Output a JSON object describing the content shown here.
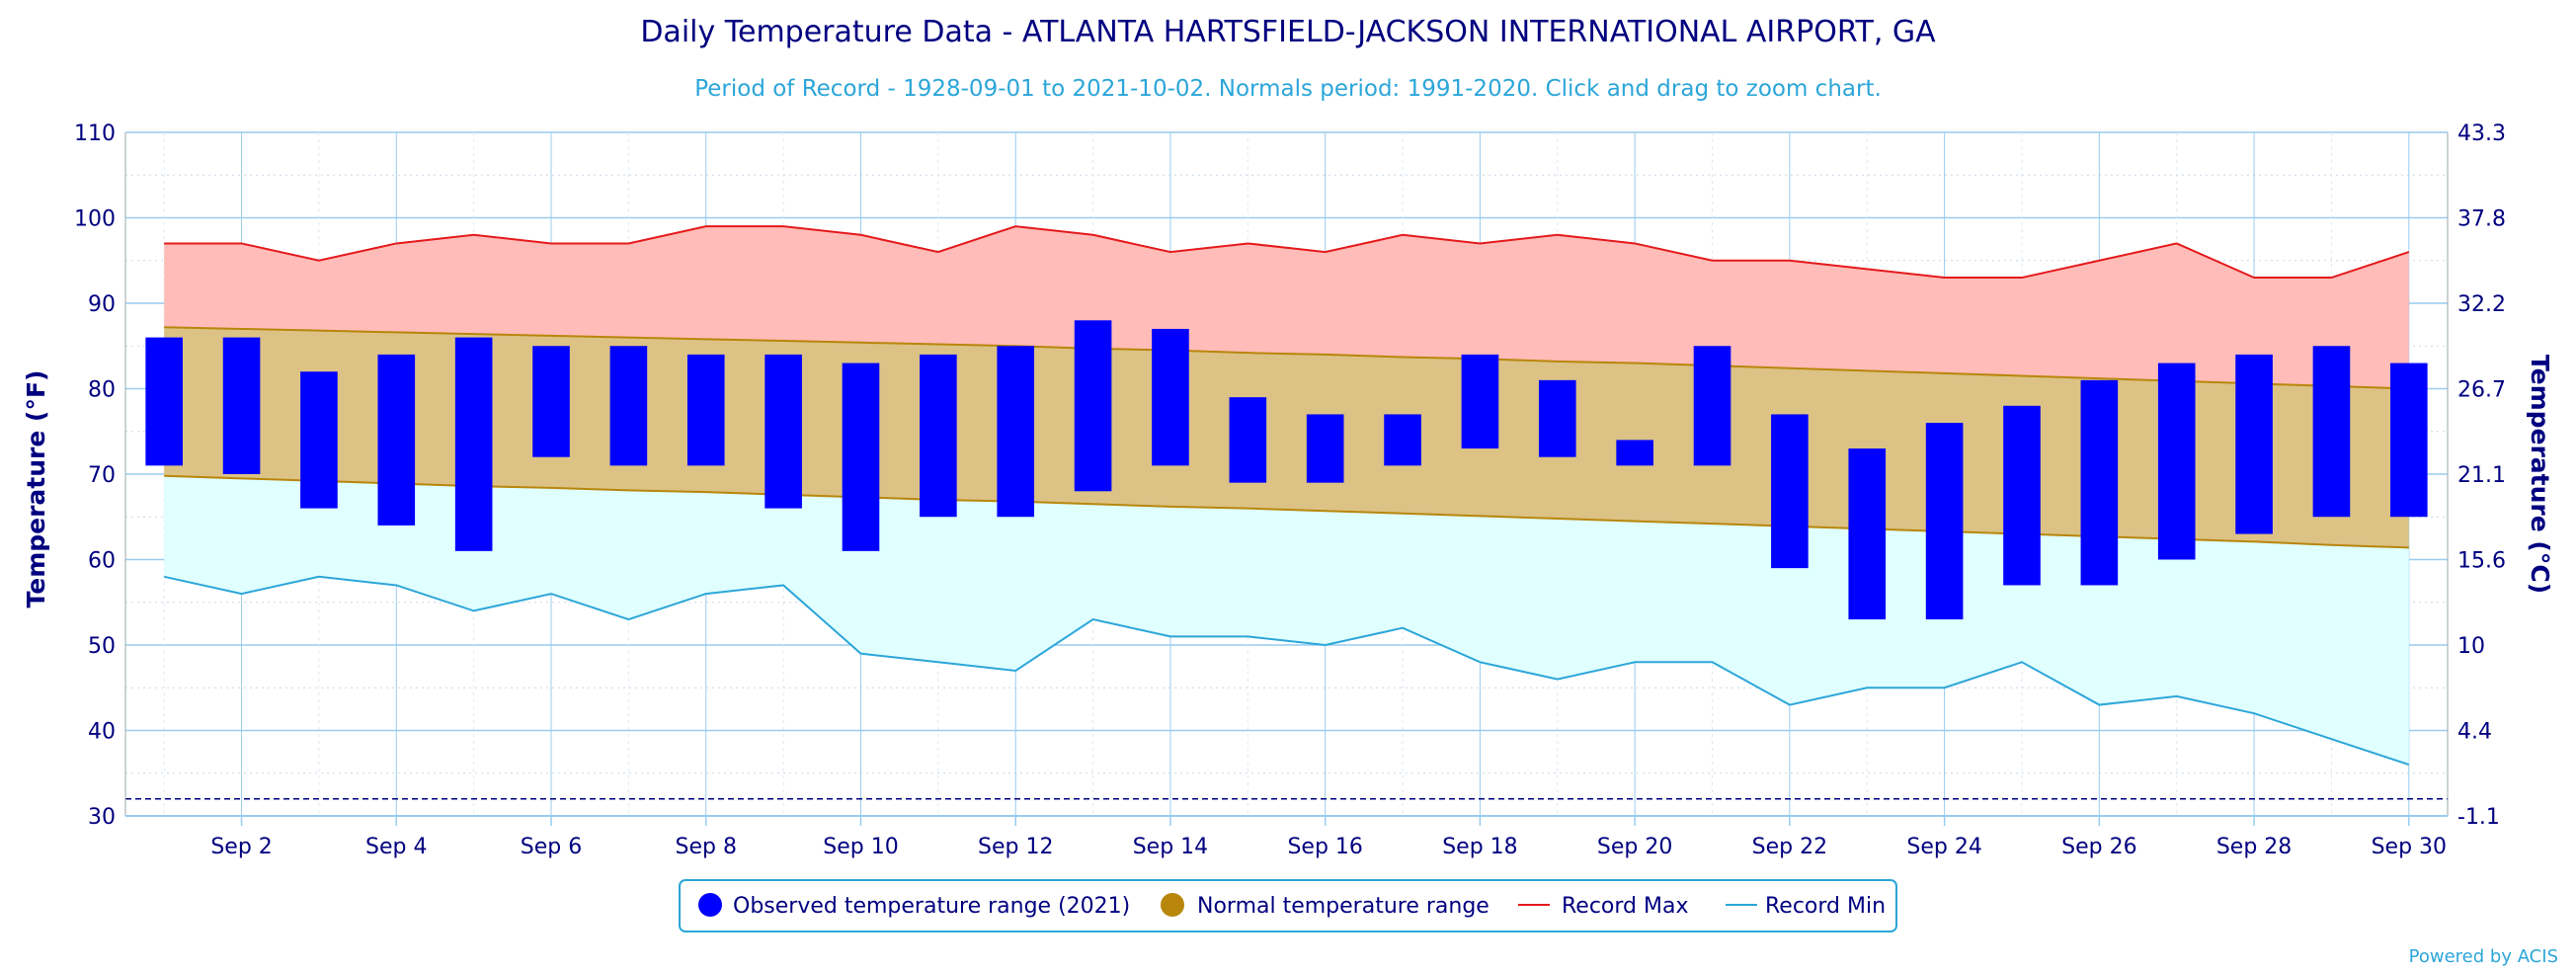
{
  "title": "Daily Temperature Data - ATLANTA HARTSFIELD-JACKSON INTERNATIONAL AIRPORT, GA",
  "subtitle": "Period of Record - 1928-09-01 to 2021-10-02. Normals period: 1991-2020. Click and drag to zoom chart.",
  "credit": "Powered by ACIS",
  "colors": {
    "observed": "#0000ff",
    "normal": "#b8860b",
    "normal_fill": "#dcc285",
    "record_max": "#e41a1c",
    "record_max_fill": "#ffbcb8",
    "record_min": "#2ca6d9",
    "record_min_fill": "#e0ffff",
    "axis": "#000080",
    "grid": "#99ccee"
  },
  "chart_data": {
    "type": "bar",
    "xlabel": "",
    "ylabel": "Temperature (°F)",
    "y2label": "Temperature (°C)",
    "ylim": [
      30,
      110
    ],
    "yticks": [
      "30",
      "40",
      "50",
      "60",
      "70",
      "80",
      "90",
      "100",
      "110"
    ],
    "y2ticks": [
      "-1.1",
      "4.4",
      "10",
      "15.6",
      "21.1",
      "26.7",
      "32.2",
      "37.8",
      "43.3"
    ],
    "freezing_line": 32,
    "x_labels": [
      "Sep 2",
      "Sep 4",
      "Sep 6",
      "Sep 8",
      "Sep 10",
      "Sep 12",
      "Sep 14",
      "Sep 16",
      "Sep 18",
      "Sep 20",
      "Sep 22",
      "Sep 24",
      "Sep 26",
      "Sep 28",
      "Sep 30"
    ],
    "x_label_days": [
      2,
      4,
      6,
      8,
      10,
      12,
      14,
      16,
      18,
      20,
      22,
      24,
      26,
      28,
      30
    ],
    "days": [
      1,
      2,
      3,
      4,
      5,
      6,
      7,
      8,
      9,
      10,
      11,
      12,
      13,
      14,
      15,
      16,
      17,
      18,
      19,
      20,
      21,
      22,
      23,
      24,
      25,
      26,
      27,
      28,
      29,
      30
    ],
    "series": [
      {
        "name": "Observed temperature range (2021)",
        "high": [
          86,
          86,
          82,
          84,
          86,
          85,
          85,
          84,
          84,
          83,
          84,
          85,
          88,
          87,
          79,
          77,
          77,
          84,
          81,
          74,
          85,
          77,
          73,
          76,
          78,
          81,
          83,
          84,
          85,
          83
        ],
        "low": [
          71,
          70,
          66,
          64,
          61,
          72,
          71,
          71,
          66,
          61,
          65,
          65,
          68,
          71,
          69,
          69,
          71,
          73,
          72,
          71,
          71,
          59,
          53,
          53,
          57,
          57,
          60,
          63,
          65,
          65
        ]
      },
      {
        "name": "Normal temperature range",
        "high": [
          87.2,
          87.0,
          86.8,
          86.6,
          86.4,
          86.2,
          86.0,
          85.8,
          85.6,
          85.4,
          85.2,
          85.0,
          84.7,
          84.5,
          84.2,
          84.0,
          83.7,
          83.5,
          83.2,
          83.0,
          82.7,
          82.4,
          82.1,
          81.8,
          81.5,
          81.2,
          80.9,
          80.6,
          80.3,
          80.0
        ],
        "low": [
          69.8,
          69.5,
          69.2,
          68.9,
          68.6,
          68.4,
          68.1,
          67.9,
          67.6,
          67.3,
          67.0,
          66.8,
          66.5,
          66.2,
          66.0,
          65.7,
          65.4,
          65.1,
          64.8,
          64.5,
          64.2,
          63.9,
          63.6,
          63.3,
          63.0,
          62.7,
          62.4,
          62.1,
          61.7,
          61.4
        ]
      },
      {
        "name": "Record Max",
        "values": [
          97,
          97,
          95,
          97,
          98,
          97,
          97,
          99,
          99,
          98,
          96,
          99,
          98,
          96,
          97,
          96,
          98,
          97,
          98,
          97,
          95,
          95,
          94,
          93,
          93,
          95,
          97,
          93,
          93,
          96
        ]
      },
      {
        "name": "Record Min",
        "values": [
          58,
          56,
          58,
          57,
          54,
          56,
          53,
          56,
          57,
          49,
          48,
          47,
          53,
          51,
          51,
          50,
          52,
          48,
          46,
          48,
          48,
          43,
          45,
          45,
          48,
          43,
          44,
          42,
          39,
          36
        ]
      }
    ],
    "legend_position": "bottom-center"
  }
}
